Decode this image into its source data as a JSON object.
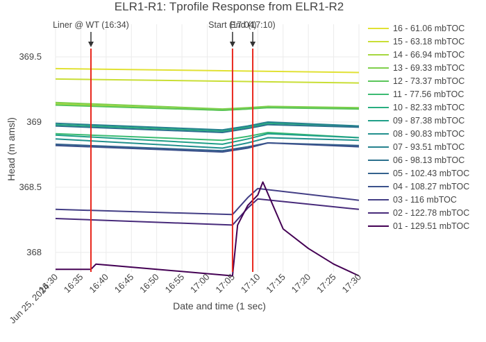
{
  "chart_data": {
    "type": "line",
    "title": "ELR1-R1: Tprofile Response from ELR1-R2",
    "xlabel": "Date and time (1 sec)",
    "ylabel": "Head (m amsl)",
    "x_range": [
      "16:30",
      "17:30"
    ],
    "ylim": [
      367.85,
      369.75
    ],
    "x_ticks": [
      {
        "t": "16:30",
        "label": "16:30",
        "sublabel": "Jun 25, 2024"
      },
      {
        "t": "16:35",
        "label": "16:35"
      },
      {
        "t": "16:40",
        "label": "16:40"
      },
      {
        "t": "16:45",
        "label": "16:45"
      },
      {
        "t": "16:50",
        "label": "16:50"
      },
      {
        "t": "16:55",
        "label": "16:55"
      },
      {
        "t": "17:00",
        "label": "17:00"
      },
      {
        "t": "17:05",
        "label": "17:05"
      },
      {
        "t": "17:10",
        "label": "17:10"
      },
      {
        "t": "17:15",
        "label": "17:15"
      },
      {
        "t": "17:20",
        "label": "17:20"
      },
      {
        "t": "17:25",
        "label": "17:25"
      },
      {
        "t": "17:30",
        "label": "17:30"
      }
    ],
    "y_ticks": [
      {
        "v": 368,
        "label": "368"
      },
      {
        "v": 368.5,
        "label": "368.5"
      },
      {
        "v": 369,
        "label": "369"
      },
      {
        "v": 369.5,
        "label": "369.5"
      }
    ],
    "grid": true,
    "legend": "right",
    "annotations": [
      {
        "t": "16:37",
        "text": "Liner @ WT (16:34)"
      },
      {
        "t": "17:05",
        "text": "Start (17:04)"
      },
      {
        "t": "17:09",
        "text": "End (17:10)"
      }
    ],
    "vline_color": "#e8261c",
    "series": [
      {
        "name": "16 - 61.06 mbTOC",
        "color": "#e1e133",
        "x": [
          "16:30",
          "17:30"
        ],
        "y": [
          369.41,
          369.38
        ]
      },
      {
        "name": "15 - 63.18 mbTOC",
        "color": "#c9de35",
        "x": [
          "16:30",
          "17:30"
        ],
        "y": [
          369.33,
          369.3
        ]
      },
      {
        "name": "14 - 66.94 mbTOC",
        "color": "#a5d73f",
        "x": [
          "16:30",
          "17:03",
          "17:08",
          "17:12",
          "17:30"
        ],
        "y": [
          369.14,
          369.09,
          369.1,
          369.12,
          369.1
        ]
      },
      {
        "name": "13 - 69.33 mbTOC",
        "color": "#7ecf4b",
        "x": [
          "16:30",
          "17:03",
          "17:08",
          "17:12",
          "17:30"
        ],
        "y": [
          369.15,
          369.1,
          369.11,
          369.12,
          369.11
        ]
      },
      {
        "name": "12 - 73.37 mbTOC",
        "color": "#59c559",
        "x": [
          "16:30",
          "17:03",
          "17:08",
          "17:12",
          "17:30"
        ],
        "y": [
          369.13,
          369.09,
          369.1,
          369.11,
          369.1
        ]
      },
      {
        "name": "11 - 77.56 mbTOC",
        "color": "#3bbb72",
        "x": [
          "16:30",
          "17:03",
          "17:08",
          "17:12",
          "17:30"
        ],
        "y": [
          368.91,
          368.86,
          368.89,
          368.92,
          368.88
        ]
      },
      {
        "name": "10 - 82.33 mbTOC",
        "color": "#28ae80",
        "x": [
          "16:30",
          "17:03",
          "17:08",
          "17:12",
          "17:30"
        ],
        "y": [
          368.98,
          368.93,
          368.96,
          368.99,
          368.97
        ]
      },
      {
        "name": "09 - 87.38 mbTOC",
        "color": "#1f9f88",
        "x": [
          "16:30",
          "17:03",
          "17:08",
          "17:12",
          "17:30"
        ],
        "y": [
          368.9,
          368.83,
          368.87,
          368.91,
          368.88
        ]
      },
      {
        "name": "08 - 90.83 mbTOC",
        "color": "#21908d",
        "x": [
          "16:30",
          "17:03",
          "17:08",
          "17:12",
          "17:30"
        ],
        "y": [
          368.87,
          368.8,
          368.84,
          368.88,
          368.86
        ]
      },
      {
        "name": "07 - 93.51 mbTOC",
        "color": "#25818e",
        "x": [
          "16:30",
          "17:03",
          "17:08",
          "17:12",
          "17:30"
        ],
        "y": [
          368.99,
          368.94,
          368.97,
          369.0,
          368.97
        ]
      },
      {
        "name": "06 - 98.13 mbTOC",
        "color": "#2c718e",
        "x": [
          "16:30",
          "17:03",
          "17:08",
          "17:12",
          "17:30"
        ],
        "y": [
          368.97,
          368.92,
          368.95,
          368.98,
          368.96
        ]
      },
      {
        "name": "05 - 102.43 mbTOC",
        "color": "#33628d",
        "x": [
          "16:30",
          "17:03",
          "17:08",
          "17:12",
          "17:30"
        ],
        "y": [
          368.83,
          368.78,
          368.81,
          368.84,
          368.82
        ]
      },
      {
        "name": "04 - 108.27 mbTOC",
        "color": "#3b518b",
        "x": [
          "16:30",
          "17:03",
          "17:08",
          "17:12",
          "17:30"
        ],
        "y": [
          368.82,
          368.77,
          368.8,
          368.84,
          368.81
        ]
      },
      {
        "name": "03 - 116 mbTOC",
        "color": "#433e85",
        "x": [
          "16:30",
          "17:05",
          "17:08",
          "17:10",
          "17:30"
        ],
        "y": [
          368.33,
          368.29,
          368.42,
          368.49,
          368.4
        ]
      },
      {
        "name": "02 - 122.78 mbTOC",
        "color": "#472a7a",
        "x": [
          "16:30",
          "17:05",
          "17:08",
          "17:10",
          "17:30"
        ],
        "y": [
          368.26,
          368.21,
          368.34,
          368.41,
          368.33
        ]
      },
      {
        "name": "01 - 129.51 mbTOC",
        "color": "#440154",
        "x": [
          "16:30",
          "16:37",
          "16:38",
          "17:05",
          "17:06",
          "17:08",
          "17:10",
          "17:11",
          "17:15",
          "17:20",
          "17:25",
          "17:30"
        ],
        "y": [
          367.87,
          367.87,
          367.91,
          367.82,
          368.21,
          368.36,
          368.44,
          368.54,
          368.18,
          368.03,
          367.91,
          367.82
        ]
      }
    ]
  }
}
